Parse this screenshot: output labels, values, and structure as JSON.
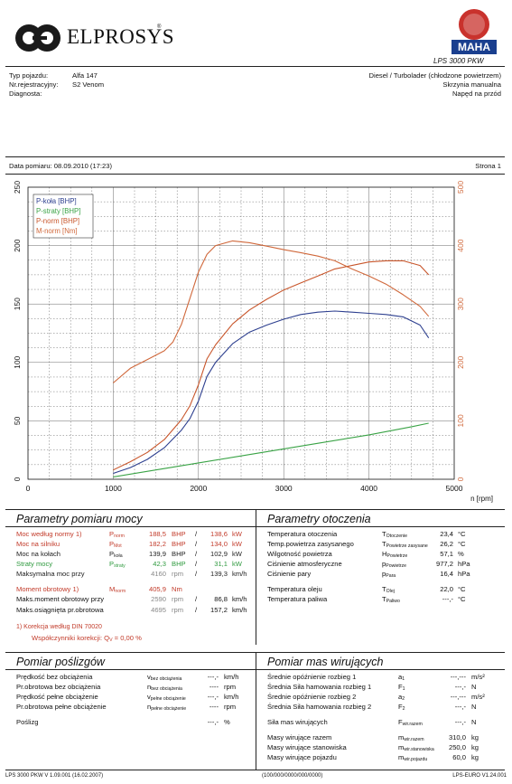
{
  "header": {
    "company": "ELPROSYS",
    "device": "LPS 3000 PKW",
    "badge_brand": "MAHA"
  },
  "vehicle": {
    "type_label": "Typ pojazdu:",
    "type_value": "Alfa 147",
    "reg_label": "Nr.rejestracyjny:",
    "reg_value": "S2 Venom",
    "diag_label": "Diagnosta:",
    "engine": "Diesel / Turbolader (chłodzone powietrzem)",
    "gearbox": "Skrzynia manualna",
    "drive": "Napęd na przód"
  },
  "meta": {
    "date_label": "Data pomiaru: 08.09.2010 (17:23)",
    "page_label": "Strona 1"
  },
  "chart_data": {
    "type": "line",
    "x_unit": "n [rpm]",
    "xlim": [
      0,
      5000
    ],
    "x_ticks": [
      "0",
      "1000",
      "2000",
      "3000",
      "4000",
      "5000"
    ],
    "ylim_left": [
      0,
      250
    ],
    "y_ticks_left": [
      "0",
      "50",
      "100",
      "150",
      "200",
      "250"
    ],
    "ylim_right": [
      0,
      500
    ],
    "y_ticks_right": [
      "0",
      "100",
      "200",
      "300",
      "400",
      "500"
    ],
    "grid": true,
    "legend": "top-left",
    "series": [
      {
        "name": "P-koła [BHP]",
        "color": "#2d3f8f",
        "axis": "left",
        "x": [
          1000,
          1200,
          1400,
          1600,
          1800,
          1900,
          2000,
          2100,
          2200,
          2400,
          2600,
          2800,
          3000,
          3200,
          3400,
          3600,
          3800,
          4000,
          4200,
          4400,
          4600,
          4700
        ],
        "y": [
          5,
          10,
          17,
          27,
          42,
          52,
          67,
          88,
          100,
          116,
          126,
          132,
          137,
          141,
          143,
          144,
          143,
          142,
          141,
          139,
          132,
          121
        ]
      },
      {
        "name": "P-straty [BHP]",
        "color": "#3aa346",
        "axis": "left",
        "x": [
          1000,
          1500,
          2000,
          2500,
          3000,
          3500,
          4000,
          4500,
          4700
        ],
        "y": [
          2,
          8,
          14,
          20,
          26,
          32,
          38,
          45,
          48
        ]
      },
      {
        "name": "P-norm [BHP]",
        "color": "#c8552a",
        "axis": "left",
        "x": [
          1000,
          1200,
          1400,
          1600,
          1800,
          1900,
          2000,
          2100,
          2200,
          2400,
          2600,
          2800,
          3000,
          3200,
          3400,
          3600,
          3800,
          4000,
          4200,
          4400,
          4600,
          4700
        ],
        "y": [
          8,
          15,
          23,
          34,
          51,
          63,
          81,
          103,
          115,
          133,
          145,
          154,
          162,
          168,
          174,
          180,
          183,
          186,
          187,
          187,
          183,
          175
        ]
      },
      {
        "name": "M-norm [Nm]",
        "color": "#d0683b",
        "axis": "right",
        "x": [
          1000,
          1200,
          1400,
          1600,
          1700,
          1800,
          1900,
          2000,
          2100,
          2200,
          2400,
          2600,
          2800,
          3000,
          3200,
          3400,
          3600,
          3800,
          4000,
          4200,
          4400,
          4600,
          4700
        ],
        "y": [
          165,
          190,
          205,
          220,
          235,
          265,
          310,
          355,
          385,
          400,
          408,
          405,
          399,
          393,
          388,
          382,
          374,
          360,
          348,
          334,
          316,
          296,
          279
        ]
      }
    ]
  },
  "params": {
    "title": "Parametry pomiaru mocy",
    "rows": [
      {
        "label": "Moc według normy 1)",
        "sym": "P",
        "sub": "norm",
        "v1": "188,5",
        "u1": "BHP",
        "v2": "138,6",
        "u2": "kW",
        "color": "#c23b2a"
      },
      {
        "label": "Moc na silniku",
        "sym": "P",
        "sub": "Mot",
        "v1": "182,2",
        "u1": "BHP",
        "v2": "134,0",
        "u2": "kW",
        "color": "#c23b2a"
      },
      {
        "label": "Moc na kołach",
        "sym": "P",
        "sub": "koła",
        "v1": "139,9",
        "u1": "BHP",
        "v2": "102,9",
        "u2": "kW",
        "color": "#222"
      },
      {
        "label": "Straty mocy",
        "sym": "P",
        "sub": "straty",
        "v1": "42,3",
        "u1": "BHP",
        "v2": "31,1",
        "u2": "kW",
        "color": "#2f9a3f"
      },
      {
        "label": "Maksymalna moc przy",
        "sym": "",
        "sub": "",
        "v1": "4160",
        "u1": "rpm",
        "v2": "139,3",
        "u2": "km/h",
        "color": "#222"
      }
    ],
    "torque": {
      "label": "Moment obrotowy 1)",
      "sym": "M",
      "sub": "norm",
      "v1": "405,9",
      "u1": "Nm"
    },
    "torque_rows": [
      {
        "label": "Maks.moment obrotowy przy",
        "v1": "2590",
        "u1": "rpm",
        "v2": "86,8",
        "u2": "km/h"
      },
      {
        "label": "Maks.osiągnięta pr.obrotowa",
        "v1": "4695",
        "u1": "rpm",
        "v2": "157,2",
        "u2": "km/h"
      }
    ],
    "note1": "1) Korekcja według DIN 70020",
    "note2": "Współczynniki korekcji: Q",
    "note2_sub": "V",
    "note2_val": "= 0,00 %"
  },
  "env": {
    "title": "Parametry otoczenia",
    "rows": [
      {
        "label": "Temperatura otoczenia",
        "sym": "T",
        "sub": "Otoczenie",
        "val": "23,4",
        "unit": "°C"
      },
      {
        "label": "Temp.powietrza zasysanego",
        "sym": "T",
        "sub": "Powietrze zasysane",
        "val": "26,2",
        "unit": "°C"
      },
      {
        "label": "Wilgotność powietrza",
        "sym": "H",
        "sub": "Powietrze",
        "val": "57,1",
        "unit": "%"
      },
      {
        "label": "Ciśnienie atmosferyczne",
        "sym": "p",
        "sub": "Powietrze",
        "val": "977,2",
        "unit": "hPa"
      },
      {
        "label": "Ciśnienie pary",
        "sym": "p",
        "sub": "Para",
        "val": "16,4",
        "unit": "hPa"
      },
      {
        "label": "Temperatura oleju",
        "sym": "T",
        "sub": "Olej",
        "val": "22,0",
        "unit": "°C"
      },
      {
        "label": "Temperatura paliwa",
        "sym": "T",
        "sub": "Paliwo",
        "val": "---,-",
        "unit": "°C"
      }
    ]
  },
  "slip": {
    "title": "Pomiar poślizgów",
    "rows": [
      {
        "label": "Prędkość bez obciążenia",
        "sym": "v",
        "sub": "bez obciążenia",
        "val": "---,-",
        "unit": "km/h"
      },
      {
        "label": "Pr.obrotowa bez obciążenia",
        "sym": "n",
        "sub": "bez obciążenia",
        "val": "----",
        "unit": "rpm"
      },
      {
        "label": "Prędkość pełne obciążenie",
        "sym": "v",
        "sub": "pełne obciążenie",
        "val": "---,-",
        "unit": "km/h"
      },
      {
        "label": "Pr.obrotowa pełne obciążenie",
        "sym": "n",
        "sub": "pełne obciążenie",
        "val": "----",
        "unit": "rpm"
      },
      {
        "label": "Poślizg",
        "sym": "",
        "sub": "",
        "val": "---,-",
        "unit": "%"
      }
    ]
  },
  "mass": {
    "title": "Pomiar mas wirujących",
    "rows": [
      {
        "label": "Średnie opóźnienie rozbieg 1",
        "sym": "a",
        "sub": "1",
        "val": "---,---",
        "unit": "m/s²"
      },
      {
        "label": "Średnia Siła hamowania rozbieg 1",
        "sym": "F",
        "sub": "1",
        "val": "---,-",
        "unit": "N"
      },
      {
        "label": "Średnie opóźnienie rozbieg 2",
        "sym": "a",
        "sub": "2",
        "val": "---,---",
        "unit": "m/s²"
      },
      {
        "label": "Średnia Siła hamowania rozbieg 2",
        "sym": "F",
        "sub": "2",
        "val": "---,-",
        "unit": "N"
      },
      {
        "label": "Siła mas wirujących",
        "sym": "F",
        "sub": "wir.razem",
        "val": "---,-",
        "unit": "N"
      },
      {
        "label": "Masy wirujące razem",
        "sym": "m",
        "sub": "wir.razem",
        "val": "310,0",
        "unit": "kg"
      },
      {
        "label": "Masy wirujące stanowiska",
        "sym": "m",
        "sub": "wir.stanowiska",
        "val": "250,0",
        "unit": "kg"
      },
      {
        "label": "Masy wirujące pojazdu",
        "sym": "m",
        "sub": "wir.pojazdu",
        "val": "60,0",
        "unit": "kg"
      }
    ]
  },
  "footer": {
    "left": "LPS 3000 PKW V 1.09.001 (16.02.2007)",
    "center": "(100/000/0000/000/0000)",
    "right": "LPS-EURO V1.24.001"
  }
}
